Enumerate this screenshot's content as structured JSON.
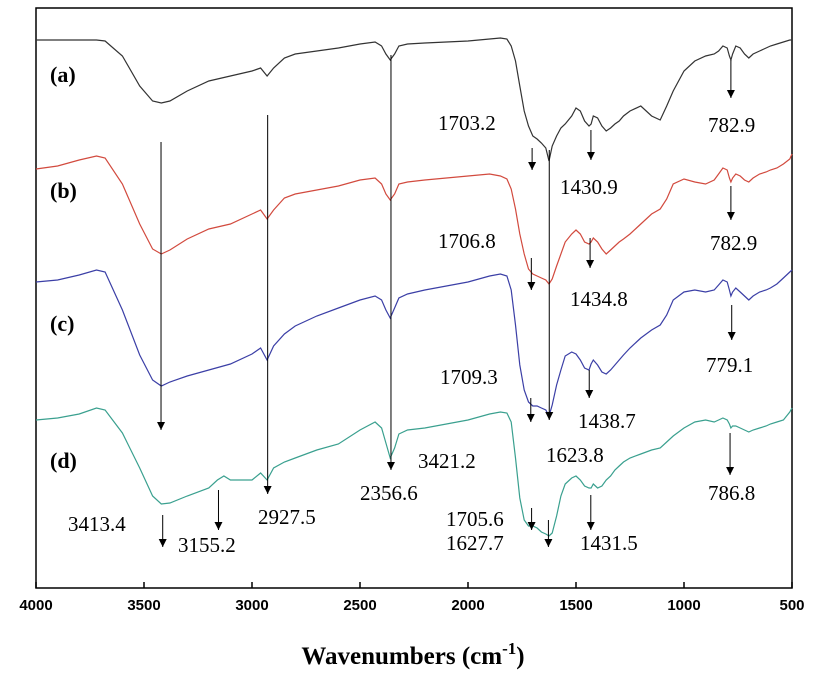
{
  "chart_data": {
    "type": "line",
    "xlabel": "Wavenumbers (cm",
    "xlabel_sup": "-1",
    "xlabel_close": ")",
    "xlim": [
      4000,
      500
    ],
    "x_reversed": true,
    "x_ticks": [
      "4000",
      "3500",
      "3000",
      "2500",
      "2000",
      "1500",
      "1000",
      "500"
    ],
    "y_ticks_shown": false,
    "series": [
      {
        "name": "(a)",
        "color": "#333333",
        "offset": 0,
        "x": [
          4000,
          3900,
          3800,
          3720,
          3680,
          3600,
          3520,
          3460,
          3420,
          3380,
          3300,
          3200,
          3100,
          3000,
          2960,
          2930,
          2900,
          2850,
          2800,
          2700,
          2600,
          2500,
          2430,
          2400,
          2380,
          2360,
          2340,
          2320,
          2280,
          2200,
          2100,
          2000,
          1900,
          1850,
          1820,
          1800,
          1780,
          1760,
          1740,
          1720,
          1700,
          1680,
          1660,
          1640,
          1625,
          1610,
          1590,
          1570,
          1550,
          1520,
          1500,
          1480,
          1460,
          1440,
          1430,
          1420,
          1400,
          1380,
          1360,
          1340,
          1320,
          1300,
          1280,
          1250,
          1200,
          1150,
          1110,
          1080,
          1050,
          1000,
          950,
          900,
          860,
          840,
          820,
          800,
          790,
          783,
          775,
          760,
          740,
          720,
          700,
          680,
          650,
          620,
          600,
          570,
          540,
          510,
          500
        ],
        "y": [
          4,
          4,
          4,
          4,
          5,
          20,
          50,
          65,
          67,
          65,
          55,
          45,
          40,
          35,
          32,
          40,
          32,
          22,
          18,
          15,
          12,
          8,
          6,
          10,
          18,
          24,
          18,
          10,
          8,
          7,
          6,
          5,
          3,
          2,
          3,
          10,
          25,
          50,
          75,
          90,
          100,
          103,
          107,
          112,
          125,
          110,
          100,
          92,
          88,
          80,
          72,
          75,
          85,
          90,
          88,
          80,
          82,
          90,
          95,
          92,
          88,
          85,
          80,
          75,
          70,
          80,
          84,
          70,
          55,
          35,
          25,
          20,
          18,
          15,
          10,
          12,
          20,
          24,
          18,
          10,
          12,
          18,
          22,
          18,
          15,
          12,
          10,
          8,
          6,
          4,
          4
        ]
      },
      {
        "name": "(b)",
        "color": "#d24a3e",
        "offset": 118,
        "x": [
          4000,
          3900,
          3800,
          3720,
          3680,
          3600,
          3520,
          3460,
          3420,
          3380,
          3300,
          3200,
          3100,
          3000,
          2960,
          2930,
          2900,
          2850,
          2800,
          2700,
          2600,
          2500,
          2430,
          2400,
          2380,
          2360,
          2340,
          2320,
          2280,
          2200,
          2100,
          2000,
          1900,
          1850,
          1820,
          1800,
          1780,
          1760,
          1740,
          1720,
          1700,
          1680,
          1660,
          1640,
          1625,
          1610,
          1590,
          1570,
          1550,
          1520,
          1500,
          1480,
          1460,
          1440,
          1430,
          1420,
          1400,
          1380,
          1360,
          1340,
          1320,
          1300,
          1280,
          1250,
          1200,
          1150,
          1110,
          1080,
          1050,
          1000,
          950,
          900,
          860,
          840,
          820,
          800,
          790,
          783,
          775,
          760,
          740,
          720,
          700,
          680,
          650,
          620,
          600,
          570,
          540,
          510,
          500
        ],
        "y": [
          15,
          12,
          6,
          2,
          4,
          30,
          70,
          95,
          100,
          96,
          85,
          75,
          70,
          60,
          56,
          65,
          56,
          44,
          40,
          36,
          32,
          26,
          24,
          30,
          40,
          46,
          40,
          30,
          28,
          26,
          24,
          22,
          20,
          22,
          25,
          35,
          55,
          80,
          100,
          115,
          120,
          122,
          124,
          126,
          130,
          125,
          112,
          100,
          88,
          80,
          76,
          80,
          88,
          90,
          88,
          84,
          88,
          95,
          100,
          96,
          92,
          88,
          85,
          80,
          70,
          60,
          55,
          45,
          30,
          25,
          28,
          30,
          26,
          20,
          14,
          16,
          24,
          28,
          24,
          20,
          22,
          26,
          28,
          24,
          20,
          18,
          16,
          14,
          10,
          5,
          0
        ]
      },
      {
        "name": "(c)",
        "color": "#3b3fa6",
        "offset": 234,
        "x": [
          4000,
          3900,
          3800,
          3720,
          3680,
          3600,
          3520,
          3460,
          3420,
          3380,
          3300,
          3200,
          3100,
          3000,
          2960,
          2930,
          2900,
          2850,
          2800,
          2700,
          2600,
          2500,
          2430,
          2400,
          2380,
          2360,
          2340,
          2320,
          2280,
          2200,
          2100,
          2000,
          1900,
          1850,
          1820,
          1800,
          1780,
          1760,
          1740,
          1720,
          1700,
          1680,
          1660,
          1640,
          1625,
          1610,
          1590,
          1570,
          1550,
          1520,
          1500,
          1480,
          1460,
          1440,
          1430,
          1420,
          1400,
          1380,
          1360,
          1340,
          1320,
          1300,
          1280,
          1250,
          1200,
          1150,
          1110,
          1080,
          1050,
          1000,
          950,
          900,
          860,
          840,
          820,
          800,
          790,
          783,
          775,
          760,
          740,
          720,
          700,
          680,
          650,
          620,
          600,
          570,
          540,
          510,
          500
        ],
        "y": [
          12,
          10,
          5,
          0,
          2,
          40,
          85,
          110,
          116,
          112,
          106,
          100,
          94,
          84,
          78,
          90,
          76,
          64,
          56,
          46,
          38,
          30,
          26,
          30,
          40,
          48,
          38,
          28,
          24,
          20,
          16,
          12,
          6,
          4,
          6,
          20,
          55,
          95,
          120,
          132,
          136,
          136,
          138,
          140,
          146,
          135,
          115,
          100,
          86,
          82,
          84,
          90,
          98,
          100,
          94,
          90,
          95,
          102,
          104,
          100,
          95,
          90,
          85,
          78,
          68,
          60,
          55,
          45,
          30,
          22,
          20,
          22,
          20,
          15,
          10,
          12,
          20,
          26,
          22,
          18,
          22,
          26,
          30,
          26,
          22,
          20,
          18,
          14,
          8,
          2,
          0
        ]
      },
      {
        "name": "(d)",
        "color": "#3aa08f",
        "offset": 372,
        "x": [
          4000,
          3900,
          3800,
          3720,
          3680,
          3600,
          3520,
          3460,
          3420,
          3380,
          3300,
          3200,
          3160,
          3130,
          3100,
          3000,
          2960,
          2930,
          2900,
          2850,
          2800,
          2700,
          2600,
          2500,
          2430,
          2400,
          2380,
          2360,
          2340,
          2320,
          2280,
          2200,
          2100,
          2000,
          1900,
          1850,
          1820,
          1800,
          1780,
          1760,
          1740,
          1720,
          1700,
          1680,
          1660,
          1640,
          1625,
          1610,
          1590,
          1570,
          1550,
          1520,
          1500,
          1480,
          1460,
          1440,
          1430,
          1420,
          1400,
          1380,
          1360,
          1340,
          1320,
          1300,
          1280,
          1250,
          1200,
          1150,
          1110,
          1080,
          1050,
          1000,
          950,
          900,
          860,
          840,
          820,
          800,
          790,
          783,
          775,
          760,
          740,
          720,
          700,
          680,
          650,
          620,
          600,
          570,
          540,
          510,
          500
        ],
        "y": [
          12,
          10,
          6,
          0,
          2,
          25,
          60,
          88,
          96,
          95,
          88,
          80,
          72,
          68,
          72,
          72,
          65,
          72,
          60,
          54,
          50,
          42,
          36,
          22,
          14,
          20,
          35,
          50,
          40,
          26,
          22,
          20,
          16,
          12,
          6,
          4,
          5,
          14,
          50,
          90,
          112,
          118,
          118,
          120,
          124,
          126,
          128,
          125,
          108,
          88,
          76,
          70,
          68,
          72,
          78,
          80,
          80,
          76,
          80,
          78,
          72,
          68,
          62,
          58,
          54,
          50,
          46,
          42,
          40,
          34,
          28,
          20,
          14,
          12,
          14,
          12,
          10,
          12,
          16,
          20,
          18,
          18,
          20,
          22,
          24,
          22,
          20,
          18,
          16,
          14,
          12,
          4,
          0
        ]
      }
    ],
    "labels": [
      {
        "text": "(a)",
        "y_mark": 4
      },
      {
        "text": "(b)",
        "y_mark": 76
      },
      {
        "text": "(c)",
        "y_mark": 181
      },
      {
        "text": "(d)",
        "y_mark": 315
      }
    ],
    "annotations": [
      {
        "text": "1703.2",
        "x": 1703.2
      },
      {
        "text": "1430.9",
        "x": 1430.9
      },
      {
        "text": "782.9",
        "x": 782.9
      },
      {
        "text": "782.9",
        "x": 782.9
      },
      {
        "text": "1706.8",
        "x": 1706.8
      },
      {
        "text": "1434.8",
        "x": 1434.8
      },
      {
        "text": "779.1",
        "x": 779.1
      },
      {
        "text": "1709.3",
        "x": 1709.3
      },
      {
        "text": "3421.2",
        "x": 3421.2
      },
      {
        "text": "1438.7",
        "x": 1438.7
      },
      {
        "text": "1623.8",
        "x": 1623.8
      },
      {
        "text": "2356.6",
        "x": 2356.6
      },
      {
        "text": "786.8",
        "x": 786.8
      },
      {
        "text": "3413.4",
        "x": 3413.4
      },
      {
        "text": "3155.2",
        "x": 3155.2
      },
      {
        "text": "2927.5",
        "x": 2927.5
      },
      {
        "text": "1705.6",
        "x": 1705.6
      },
      {
        "text": "1627.7",
        "x": 1627.7
      },
      {
        "text": "1431.5",
        "x": 1431.5
      }
    ]
  }
}
